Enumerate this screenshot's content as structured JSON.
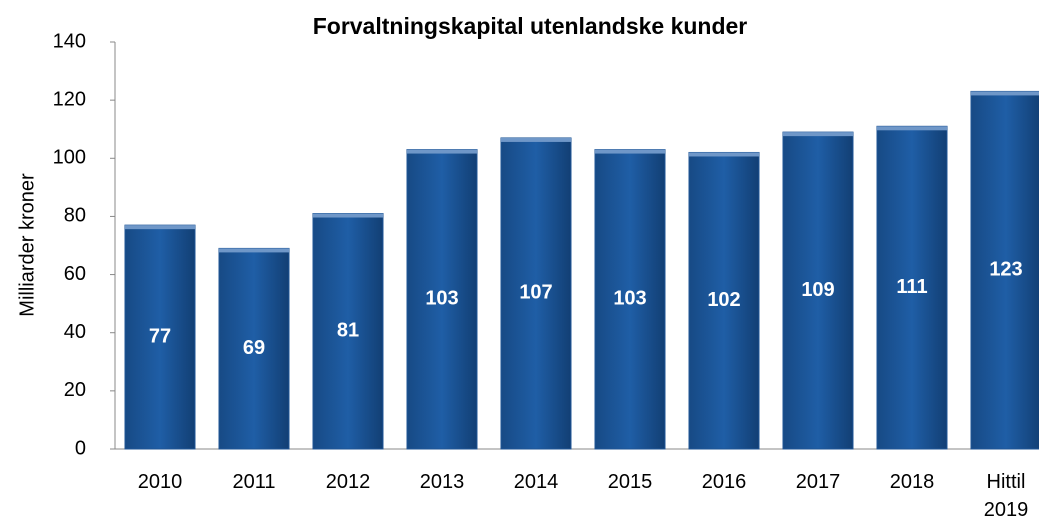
{
  "chart_data": {
    "type": "bar",
    "title": "Forvaltningskapital utenlandske kunder",
    "y_label": "Milliarder kroner",
    "categories": [
      "2010",
      "2011",
      "2012",
      "2013",
      "2014",
      "2015",
      "2016",
      "2017",
      "2018",
      "Hittil 2019"
    ],
    "values": [
      77,
      69,
      81,
      103,
      107,
      103,
      102,
      109,
      111,
      123
    ],
    "color": "#1f5596",
    "ylim": [
      0,
      140
    ],
    "yticks": [
      0,
      20,
      40,
      60,
      80,
      100,
      120,
      140
    ],
    "grid": false
  }
}
